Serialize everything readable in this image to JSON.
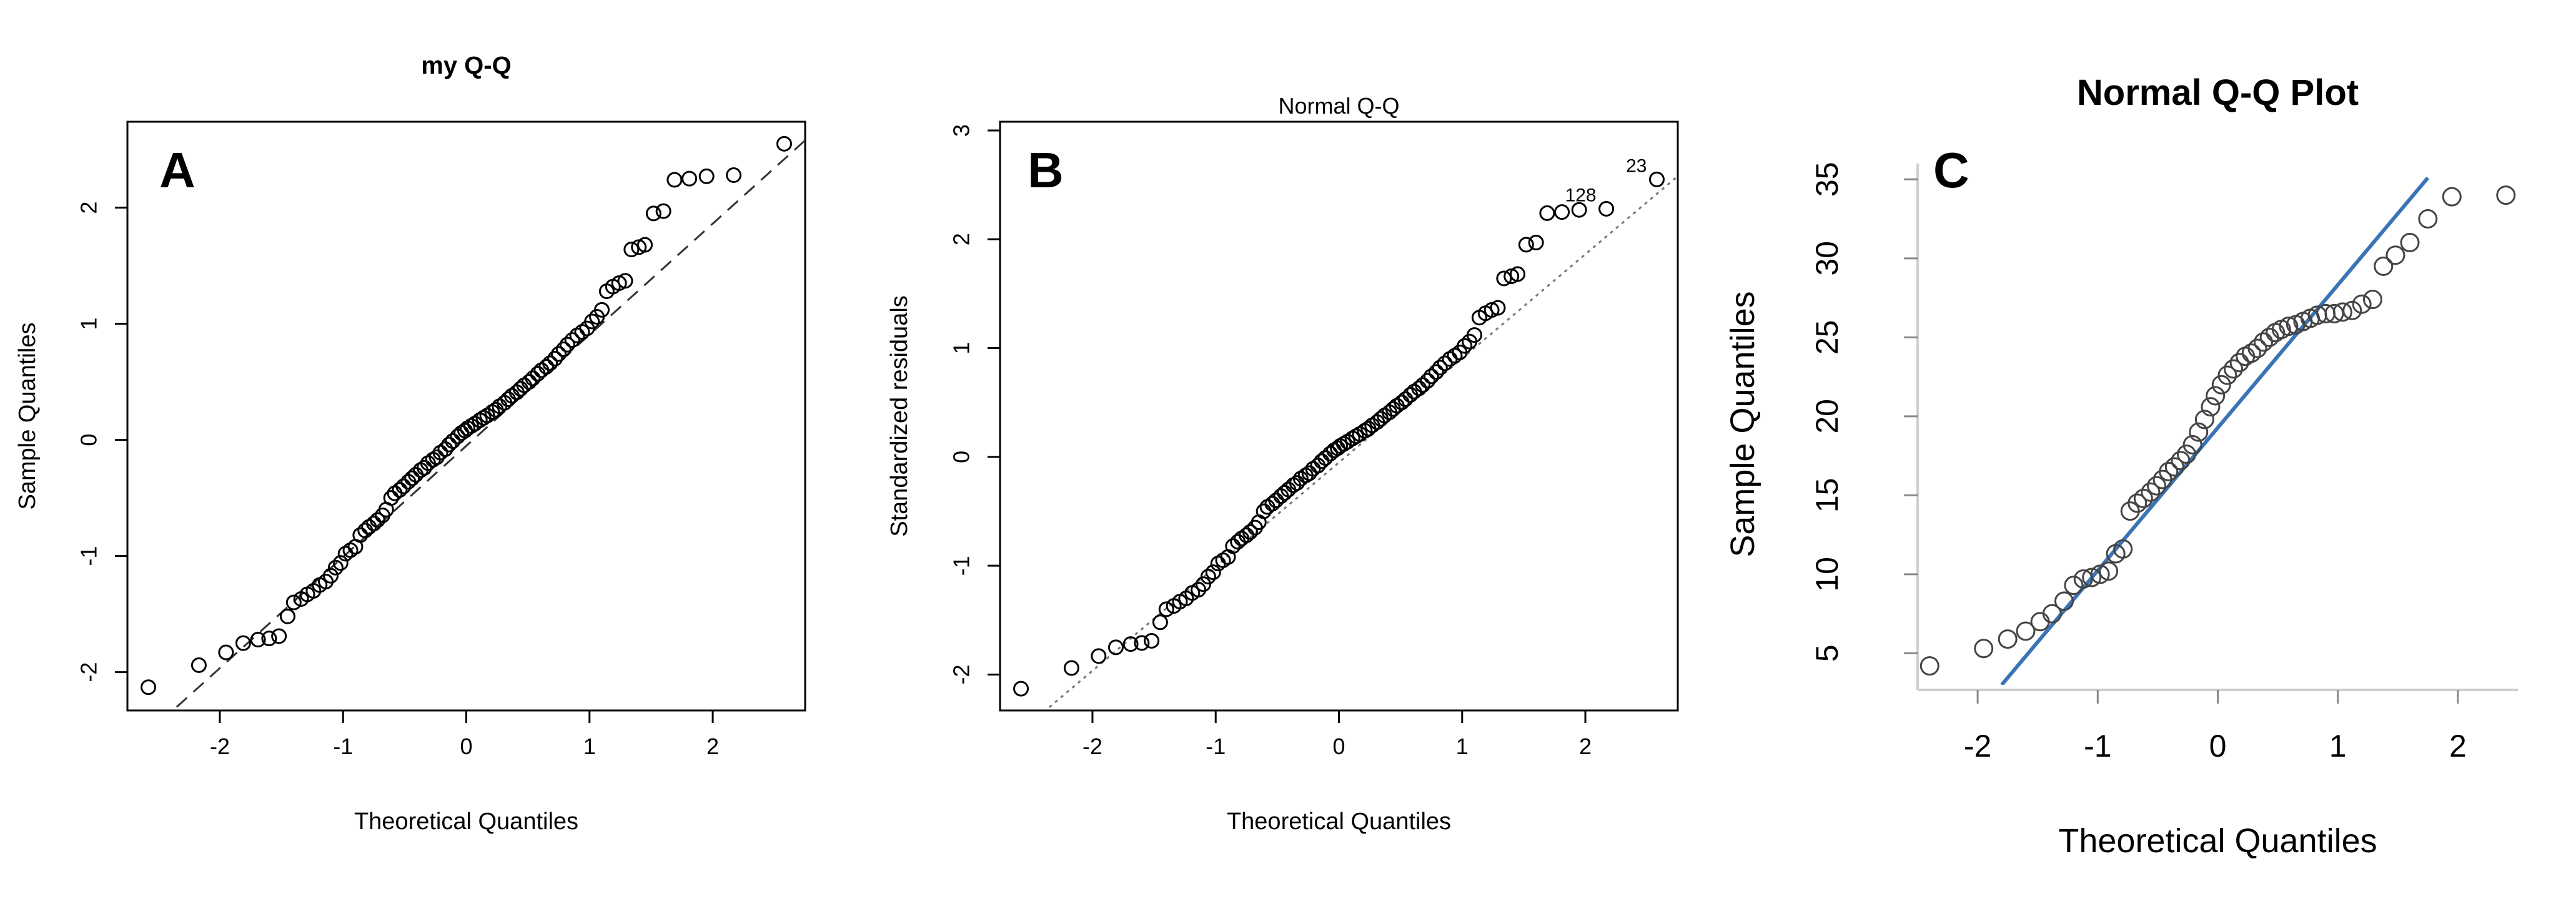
{
  "chart_data": [
    {
      "panel_label": "A",
      "type": "scatter",
      "title": "my Q-Q",
      "xlabel": "Theoretical Quantiles",
      "ylabel": "Sample Quantiles",
      "xlim": [
        -2.75,
        2.75
      ],
      "ylim": [
        -2.33,
        2.74
      ],
      "xticks": [
        -2,
        -1,
        0,
        1,
        2
      ],
      "yticks": [
        -2,
        -1,
        0,
        1,
        2
      ],
      "grid": false,
      "reference_line": {
        "style": "dashed",
        "color": "#333333",
        "x": [
          -2.35,
          2.75
        ],
        "y": [
          -2.3,
          2.58
        ]
      },
      "series": [
        {
          "marker": "open-circle",
          "x": [
            -2.58,
            -2.17,
            -1.95,
            -1.81,
            -1.69,
            -1.6,
            -1.52,
            -1.45,
            -1.4,
            -1.34,
            -1.29,
            -1.24,
            -1.19,
            -1.14,
            -1.1,
            -1.06,
            -1.02,
            -0.98,
            -0.94,
            -0.9,
            -0.86,
            -0.82,
            -0.79,
            -0.75,
            -0.72,
            -0.68,
            -0.65,
            -0.61,
            -0.58,
            -0.54,
            -0.51,
            -0.47,
            -0.44,
            -0.41,
            -0.37,
            -0.34,
            -0.31,
            -0.27,
            -0.24,
            -0.21,
            -0.17,
            -0.14,
            -0.11,
            -0.07,
            -0.04,
            -0.01,
            0.01,
            0.04,
            0.07,
            0.11,
            0.14,
            0.17,
            0.21,
            0.24,
            0.27,
            0.31,
            0.34,
            0.37,
            0.41,
            0.44,
            0.47,
            0.51,
            0.54,
            0.58,
            0.61,
            0.65,
            0.68,
            0.72,
            0.75,
            0.79,
            0.82,
            0.86,
            0.9,
            0.94,
            0.98,
            1.02,
            1.06,
            1.1,
            1.14,
            1.19,
            1.24,
            1.29,
            1.34,
            1.4,
            1.45,
            1.52,
            1.6,
            1.69,
            1.81,
            1.95,
            2.17,
            2.58
          ],
          "y": [
            -2.13,
            -1.94,
            -1.83,
            -1.75,
            -1.72,
            -1.71,
            -1.69,
            -1.52,
            -1.4,
            -1.37,
            -1.33,
            -1.3,
            -1.25,
            -1.22,
            -1.17,
            -1.1,
            -1.06,
            -0.98,
            -0.95,
            -0.92,
            -0.82,
            -0.78,
            -0.75,
            -0.72,
            -0.69,
            -0.65,
            -0.6,
            -0.5,
            -0.46,
            -0.43,
            -0.4,
            -0.36,
            -0.33,
            -0.3,
            -0.26,
            -0.24,
            -0.2,
            -0.17,
            -0.15,
            -0.11,
            -0.08,
            -0.04,
            -0.01,
            0.03,
            0.06,
            0.08,
            0.1,
            0.12,
            0.14,
            0.17,
            0.19,
            0.21,
            0.24,
            0.26,
            0.29,
            0.32,
            0.35,
            0.38,
            0.41,
            0.44,
            0.47,
            0.5,
            0.53,
            0.57,
            0.6,
            0.63,
            0.66,
            0.7,
            0.74,
            0.78,
            0.82,
            0.86,
            0.9,
            0.93,
            0.96,
            1.02,
            1.06,
            1.12,
            1.28,
            1.32,
            1.35,
            1.37,
            1.64,
            1.66,
            1.68,
            1.95,
            1.97,
            2.24,
            2.25,
            2.27,
            2.28,
            2.55
          ]
        }
      ]
    },
    {
      "panel_label": "B",
      "type": "scatter",
      "title": "Normal Q-Q",
      "xlabel": "Theoretical Quantiles",
      "ylabel": "Standardized residuals",
      "xlim": [
        -2.75,
        2.75
      ],
      "ylim": [
        -2.33,
        3.08
      ],
      "xticks": [
        -2,
        -1,
        0,
        1,
        2
      ],
      "yticks": [
        -2,
        -1,
        0,
        1,
        2,
        3
      ],
      "grid": false,
      "reference_line": {
        "style": "dotted",
        "color": "#777777",
        "x": [
          -2.35,
          2.75
        ],
        "y": [
          -2.3,
          2.58
        ]
      },
      "point_labels": [
        {
          "text": "23",
          "x": 2.58,
          "y": 2.55
        },
        {
          "text": "128",
          "x": 2.17,
          "y": 2.28
        }
      ],
      "series": [
        {
          "marker": "open-circle",
          "x": [
            -2.58,
            -2.17,
            -1.95,
            -1.81,
            -1.69,
            -1.6,
            -1.52,
            -1.45,
            -1.4,
            -1.34,
            -1.29,
            -1.24,
            -1.19,
            -1.14,
            -1.1,
            -1.06,
            -1.02,
            -0.98,
            -0.94,
            -0.9,
            -0.86,
            -0.82,
            -0.79,
            -0.75,
            -0.72,
            -0.68,
            -0.65,
            -0.61,
            -0.58,
            -0.54,
            -0.51,
            -0.47,
            -0.44,
            -0.41,
            -0.37,
            -0.34,
            -0.31,
            -0.27,
            -0.24,
            -0.21,
            -0.17,
            -0.14,
            -0.11,
            -0.07,
            -0.04,
            -0.01,
            0.01,
            0.04,
            0.07,
            0.11,
            0.14,
            0.17,
            0.21,
            0.24,
            0.27,
            0.31,
            0.34,
            0.37,
            0.41,
            0.44,
            0.47,
            0.51,
            0.54,
            0.58,
            0.61,
            0.65,
            0.68,
            0.72,
            0.75,
            0.79,
            0.82,
            0.86,
            0.9,
            0.94,
            0.98,
            1.02,
            1.06,
            1.1,
            1.14,
            1.19,
            1.24,
            1.29,
            1.34,
            1.4,
            1.45,
            1.52,
            1.6,
            1.69,
            1.81,
            1.95,
            2.17,
            2.58
          ],
          "y": [
            -2.13,
            -1.94,
            -1.83,
            -1.75,
            -1.72,
            -1.71,
            -1.69,
            -1.52,
            -1.4,
            -1.37,
            -1.33,
            -1.3,
            -1.25,
            -1.22,
            -1.17,
            -1.1,
            -1.06,
            -0.98,
            -0.95,
            -0.92,
            -0.82,
            -0.78,
            -0.75,
            -0.72,
            -0.69,
            -0.65,
            -0.6,
            -0.5,
            -0.46,
            -0.43,
            -0.4,
            -0.36,
            -0.33,
            -0.3,
            -0.26,
            -0.24,
            -0.2,
            -0.17,
            -0.15,
            -0.11,
            -0.08,
            -0.04,
            -0.01,
            0.03,
            0.06,
            0.08,
            0.1,
            0.12,
            0.14,
            0.17,
            0.19,
            0.21,
            0.24,
            0.26,
            0.29,
            0.32,
            0.35,
            0.38,
            0.41,
            0.44,
            0.47,
            0.5,
            0.53,
            0.57,
            0.6,
            0.63,
            0.66,
            0.7,
            0.74,
            0.78,
            0.82,
            0.86,
            0.9,
            0.93,
            0.96,
            1.02,
            1.06,
            1.12,
            1.28,
            1.32,
            1.35,
            1.37,
            1.64,
            1.66,
            1.68,
            1.95,
            1.97,
            2.24,
            2.25,
            2.27,
            2.28,
            2.55
          ]
        }
      ]
    },
    {
      "panel_label": "C",
      "type": "scatter",
      "title": "Normal Q-Q Plot",
      "xlabel": "Theoretical Quantiles",
      "ylabel": "Sample Quantiles",
      "xlim": [
        -2.5,
        2.5
      ],
      "ylim": [
        3,
        36
      ],
      "xticks": [
        -2,
        -1,
        0,
        1,
        2
      ],
      "yticks": [
        5,
        10,
        15,
        20,
        25,
        30,
        35
      ],
      "grid": false,
      "reference_line": {
        "style": "solid",
        "color": "#3a74b7",
        "x": [
          -1.8,
          1.75
        ],
        "y": [
          3.0,
          35.1
        ]
      },
      "series": [
        {
          "marker": "open-circle",
          "x": [
            -2.4,
            -1.95,
            -1.75,
            -1.6,
            -1.48,
            -1.38,
            -1.28,
            -1.2,
            -1.12,
            -1.05,
            -0.98,
            -0.91,
            -0.85,
            -0.79,
            -0.73,
            -0.67,
            -0.62,
            -0.56,
            -0.51,
            -0.46,
            -0.41,
            -0.36,
            -0.31,
            -0.26,
            -0.21,
            -0.16,
            -0.11,
            -0.06,
            -0.02,
            0.03,
            0.08,
            0.13,
            0.18,
            0.23,
            0.28,
            0.33,
            0.38,
            0.43,
            0.48,
            0.53,
            0.59,
            0.65,
            0.71,
            0.77,
            0.83,
            0.9,
            0.97,
            1.04,
            1.12,
            1.2,
            1.29,
            1.38,
            1.48,
            1.6,
            1.75,
            1.95,
            2.4
          ],
          "y": [
            4.2,
            5.3,
            5.9,
            6.4,
            7.0,
            7.5,
            8.3,
            9.3,
            9.7,
            9.8,
            10.0,
            10.2,
            11.3,
            11.6,
            14.0,
            14.5,
            14.8,
            15.2,
            15.6,
            16.0,
            16.5,
            16.8,
            17.2,
            17.6,
            18.2,
            19.0,
            19.8,
            20.6,
            21.3,
            22.0,
            22.6,
            23.0,
            23.4,
            23.8,
            24.0,
            24.3,
            24.7,
            25.0,
            25.3,
            25.5,
            25.7,
            25.8,
            26.0,
            26.2,
            26.4,
            26.5,
            26.5,
            26.6,
            26.7,
            27.1,
            27.4,
            29.5,
            30.2,
            31.0,
            32.5,
            33.9,
            34.0
          ]
        }
      ]
    }
  ]
}
